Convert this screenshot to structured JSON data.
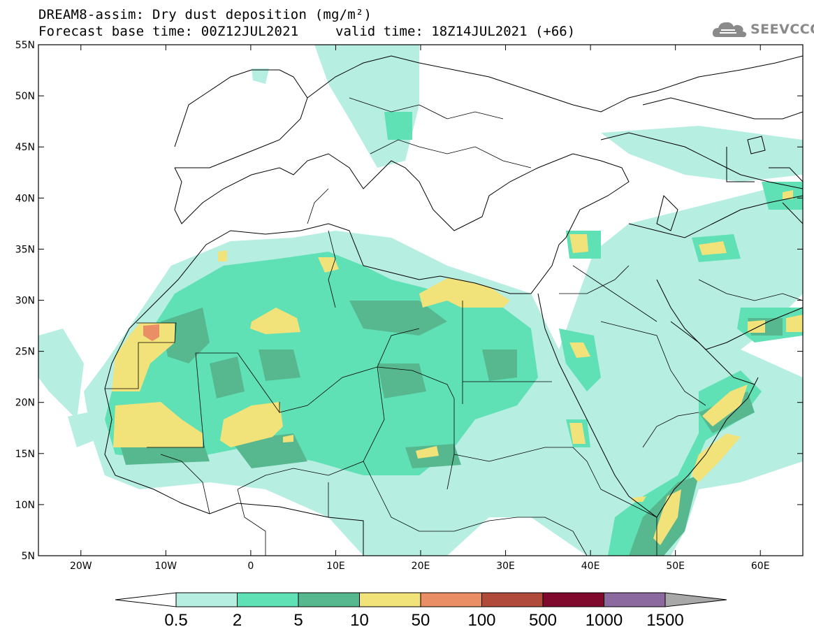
{
  "title": {
    "line1": "DREAM8-assim: Dry dust deposition (mg/m²)",
    "line2_left": "Forecast base time: 00Z12JUL2021",
    "line2_right": "valid time: 18Z14JUL2021 (+66)"
  },
  "logo": {
    "text": "SEEVCCC",
    "icon": "cloud-icon"
  },
  "map": {
    "lon_range": [
      -25,
      65
    ],
    "lat_range": [
      5,
      55
    ],
    "lat_ticks": [
      "55N",
      "50N",
      "45N",
      "40N",
      "35N",
      "30N",
      "25N",
      "20N",
      "15N",
      "10N",
      "5N"
    ],
    "lon_ticks": [
      "20W",
      "10W",
      "0",
      "10E",
      "20E",
      "30E",
      "40E",
      "50E",
      "60E"
    ]
  },
  "colorbar": {
    "labels": [
      "0.5",
      "2",
      "5",
      "10",
      "50",
      "100",
      "500",
      "1000",
      "1500"
    ],
    "colors": [
      "#b6eee2",
      "#5fe0b5",
      "#57b890",
      "#f1e27a",
      "#ea8e66",
      "#b04a3b",
      "#7f0a2d",
      "#8c6aa0"
    ],
    "under_color": "#ffffff",
    "over_color": "#a8a8a8"
  },
  "legend_colors": {
    "lvl1": "#b6eee2",
    "lvl2": "#5fe0b5",
    "lvl3": "#57b890",
    "lvl4": "#f1e27a",
    "lvl5": "#ea8e66"
  }
}
